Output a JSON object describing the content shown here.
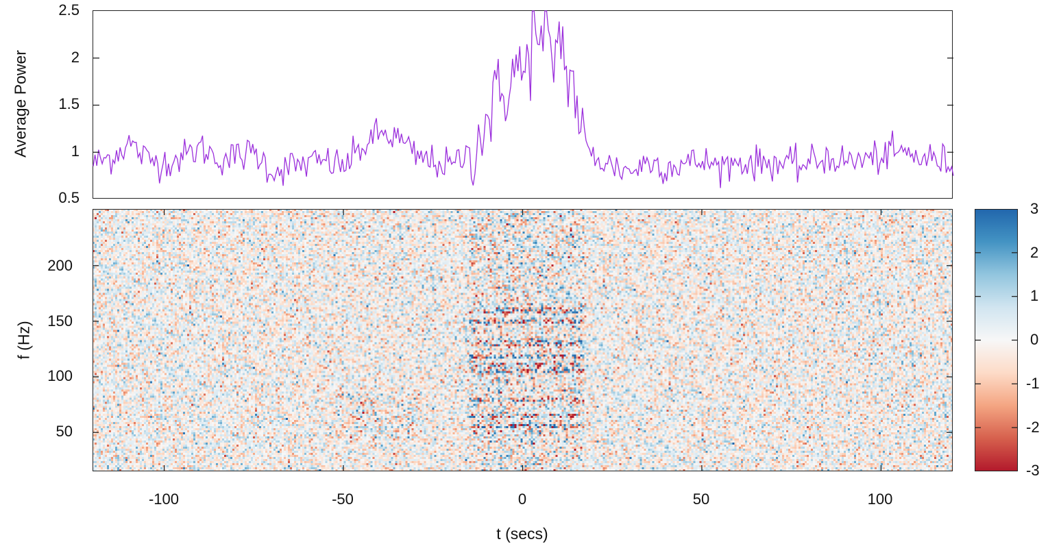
{
  "chart_data": [
    {
      "type": "line",
      "panel": "top",
      "title": "",
      "xlabel": "",
      "ylabel": "Average Power",
      "xlim": [
        -120,
        120
      ],
      "ylim": [
        0.5,
        2.5
      ],
      "yticks": [
        "0.5",
        "1",
        "1.5",
        "2",
        "2.5"
      ],
      "ytick_values": [
        0.5,
        1,
        1.5,
        2,
        2.5
      ],
      "line_color": "#9b2fdc",
      "grid": false,
      "series": [
        {
          "name": "Average Power",
          "description": "Noisy baseline ~0.9 with a broad bump near t=-40 (~1.1-1.3), then a strong peak between t=-15 and t=15 reaching ~2.5 at t≈3, returning to ~0.85 baseline after t≈17",
          "x": [
            -120,
            -115,
            -110,
            -105,
            -100,
            -95,
            -90,
            -85,
            -80,
            -75,
            -70,
            -65,
            -60,
            -55,
            -50,
            -45,
            -40,
            -35,
            -30,
            -25,
            -20,
            -15,
            -12,
            -10,
            -8,
            -6,
            -4,
            -2,
            0,
            2,
            3,
            4,
            6,
            8,
            10,
            12,
            14,
            16,
            18,
            20,
            25,
            30,
            35,
            40,
            45,
            50,
            55,
            60,
            65,
            70,
            75,
            80,
            85,
            90,
            95,
            100,
            105,
            110,
            115,
            120
          ],
          "values": [
            0.88,
            0.95,
            1.1,
            0.92,
            0.9,
            0.95,
            1.05,
            0.93,
            0.95,
            1.0,
            0.8,
            0.85,
            0.88,
            0.9,
            0.85,
            1.05,
            1.2,
            1.15,
            0.95,
            0.9,
            0.85,
            1.0,
            1.2,
            1.35,
            1.55,
            1.6,
            1.75,
            1.9,
            1.8,
            2.05,
            2.5,
            1.9,
            2.35,
            1.9,
            2.3,
            1.9,
            1.7,
            1.3,
            1.0,
            0.95,
            0.85,
            0.8,
            0.9,
            0.85,
            0.88,
            0.9,
            0.85,
            0.9,
            0.88,
            0.9,
            0.85,
            0.88,
            0.95,
            0.9,
            0.92,
            0.95,
            1.0,
            0.95,
            0.92,
            0.88
          ]
        }
      ]
    },
    {
      "type": "heatmap",
      "panel": "bottom",
      "title": "",
      "xlabel": "t (secs)",
      "ylabel": "f (Hz)",
      "xlim": [
        -120,
        120
      ],
      "ylim": [
        15,
        251
      ],
      "xticks": [
        "-100",
        "-50",
        "0",
        "50",
        "100"
      ],
      "xtick_values": [
        -100,
        -50,
        0,
        50,
        100
      ],
      "yticks": [
        "50",
        "100",
        "150",
        "200"
      ],
      "ytick_values": [
        50,
        100,
        150,
        200
      ],
      "colorbar": {
        "min": -3,
        "max": 3,
        "ticks": [
          "3",
          "2",
          "1",
          "0",
          "-1",
          "-2",
          "-3"
        ],
        "tick_values": [
          3,
          2,
          1,
          0,
          -1,
          -2,
          -3
        ],
        "colormap": "RdBu (diverging)",
        "colors": [
          "#b2182b",
          "#d6604d",
          "#f4a582",
          "#fddbc7",
          "#f7f7f7",
          "#d1e5f0",
          "#92c5de",
          "#4393c3",
          "#2166ac"
        ]
      },
      "description": "Mostly random noise in [-1,1] across all t and f; strong alternating red/blue horizontal bands between t≈-15 and t≈17 at frequencies ~55, 65, 80, 105, 115, 130, 150, 160 Hz; weaker banding near t≈-50..-30 at 50-80 Hz.",
      "signal_window": {
        "t_start": -15,
        "t_end": 17
      },
      "signal_bands_hz": [
        55,
        65,
        80,
        105,
        110,
        118,
        130,
        150,
        160
      ]
    }
  ]
}
